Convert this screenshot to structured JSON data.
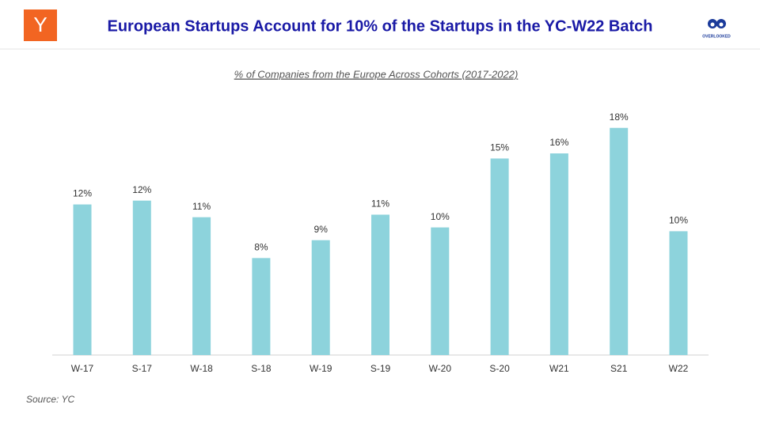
{
  "logo_text": "Y",
  "brand": "OVERLOOKED",
  "source": "Source: YC",
  "chart_data": {
    "type": "bar",
    "title": "European Startups Account for 10% of the Startups in the YC-W22 Batch",
    "subtitle": "% of Companies from the Europe Across Cohorts (2017-2022)",
    "categories": [
      "W-17",
      "S-17",
      "W-18",
      "S-18",
      "W-19",
      "S-19",
      "W-20",
      "S-20",
      "W21",
      "S21",
      "W22"
    ],
    "values": [
      11.8,
      12.1,
      10.8,
      7.6,
      9.0,
      11.0,
      10.0,
      15.4,
      15.8,
      17.8,
      9.7
    ],
    "value_labels": [
      "12%",
      "12%",
      "11%",
      "8%",
      "9%",
      "11%",
      "10%",
      "15%",
      "16%",
      "18%",
      "10%"
    ],
    "color": "#8dd3dc"
  }
}
